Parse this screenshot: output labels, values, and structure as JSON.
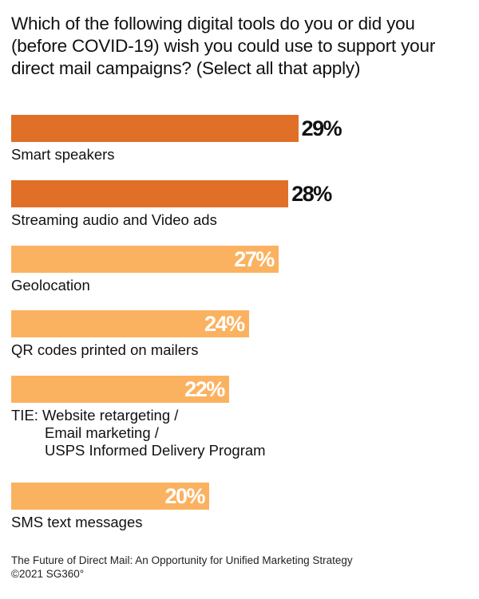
{
  "title": "Which of the following digital tools do you or did you (before COVID-19) wish you could use to support your direct mail campaigns? (Select all that apply)",
  "chart_data": {
    "type": "bar",
    "orientation": "horizontal",
    "categories": [
      [
        "Smart speakers"
      ],
      [
        "Streaming audio and Video ads"
      ],
      [
        "Geolocation"
      ],
      [
        "QR codes printed on mailers"
      ],
      [
        "TIE: Website retargeting /",
        "Email marketing /",
        "USPS Informed Delivery Program"
      ],
      [
        "SMS text messages"
      ]
    ],
    "values": [
      29,
      28,
      27,
      24,
      22,
      20
    ],
    "value_labels": [
      "29%",
      "28%",
      "27%",
      "24%",
      "22%",
      "20%"
    ],
    "colors": [
      "#e07027",
      "#e07027",
      "#fbb260",
      "#fbb260",
      "#fbb260",
      "#fbb260"
    ],
    "xlim": [
      0,
      37
    ],
    "grid": false,
    "legend": "none"
  },
  "source": {
    "line1": "The Future of Direct Mail: An Opportunity for Unified Marketing Strategy",
    "line2": "©2021 SG360°"
  }
}
